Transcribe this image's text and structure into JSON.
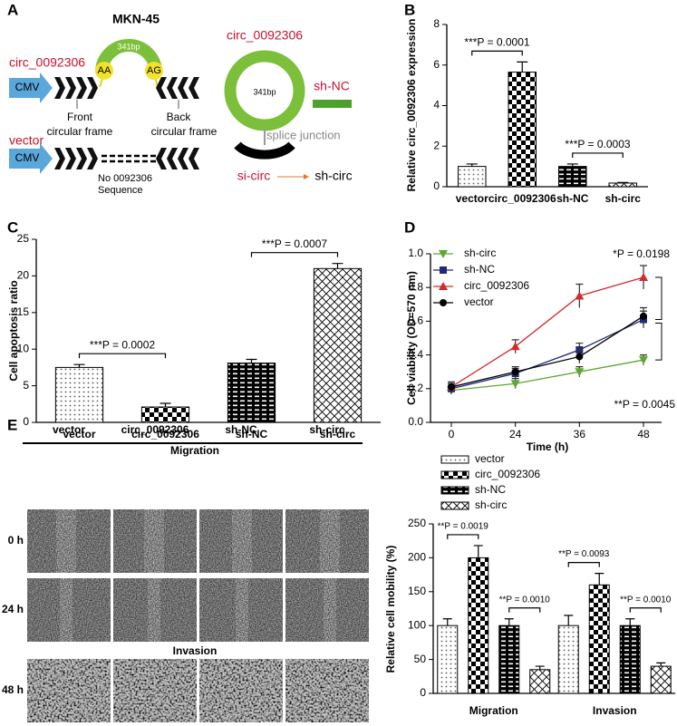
{
  "panel_labels": [
    "A",
    "B",
    "C",
    "D",
    "E"
  ],
  "diagram": {
    "title": "MKN-45",
    "insert_size": "341bp",
    "acceptor": "AA",
    "donor": "AG",
    "construct": "circ_0092306",
    "promoter": "CMV",
    "front_frame": [
      "Front",
      "circular frame"
    ],
    "back_frame": [
      "Back",
      "circular frame"
    ],
    "vector": "vector",
    "vector_promoter": "CMV",
    "vector_note": [
      "No 0092306",
      "Sequence"
    ],
    "circle_label": "circ_0092306",
    "circle_size": "341bp",
    "sh_nc": "sh-NC",
    "junction": "splice junction",
    "si_circ": "si-circ",
    "sh_circ": "sh-circ"
  },
  "images": {
    "columns": [
      "vector",
      "circ_0092306",
      "sh-NC",
      "sh-circ"
    ],
    "migration": "Migration",
    "invasion": "Invasion",
    "rows": [
      "0 h",
      "24 h",
      "48 h"
    ]
  },
  "chart_data": [
    {
      "type": "bar",
      "ylabel": "Relative circ_0092306 expression",
      "categories": [
        "vector",
        "circ_0092306",
        "sh-NC",
        "sh-circ"
      ],
      "values": [
        1.0,
        5.65,
        1.0,
        0.18
      ],
      "errors": [
        0.12,
        0.5,
        0.12,
        0.03
      ],
      "color": "#000000",
      "ylim": [
        0,
        8
      ],
      "yticks": [
        0,
        2,
        4,
        6,
        8
      ],
      "annotations": [
        "***P = 0.0001",
        "***P = 0.0003"
      ]
    },
    {
      "type": "bar",
      "ylabel": "Cell apoptosis ratio",
      "categories": [
        "vector",
        "circ_0092306",
        "sh-NC",
        "sh-circ"
      ],
      "values": [
        7.5,
        2.1,
        8.1,
        21.0
      ],
      "errors": [
        0.4,
        0.5,
        0.5,
        0.7
      ],
      "color": "#000000",
      "ylim": [
        0,
        25
      ],
      "yticks": [
        0,
        5,
        10,
        15,
        20,
        25
      ],
      "annotations": [
        "***P = 0.0002",
        "***P = 0.0007"
      ]
    },
    {
      "type": "line",
      "xlabel": "Time (h)",
      "ylabel": "Cell viability (OD=570 nm)",
      "categories": [
        "0",
        "24",
        "36",
        "48"
      ],
      "series": [
        {
          "name": "sh-circ",
          "color": "#5ca832",
          "marker": "triangle-down",
          "values": [
            0.19,
            0.23,
            0.3,
            0.37
          ],
          "errors": [
            0.02,
            0.03,
            0.03,
            0.03
          ]
        },
        {
          "name": "sh-NC",
          "color": "#1f2a7a",
          "marker": "square",
          "values": [
            0.2,
            0.29,
            0.43,
            0.61
          ],
          "errors": [
            0.03,
            0.03,
            0.04,
            0.05
          ]
        },
        {
          "name": "circ_0092306",
          "color": "#d42a2a",
          "marker": "triangle-up",
          "values": [
            0.21,
            0.45,
            0.75,
            0.86
          ],
          "errors": [
            0.02,
            0.04,
            0.07,
            0.07
          ]
        },
        {
          "name": "vector",
          "color": "#000000",
          "marker": "circle",
          "values": [
            0.21,
            0.3,
            0.39,
            0.63
          ],
          "errors": [
            0.03,
            0.03,
            0.04,
            0.05
          ]
        }
      ],
      "ylim": [
        0,
        1.0
      ],
      "yticks": [
        {
          "value": 0,
          "label": "0.0"
        },
        0.2,
        0.4,
        0.6,
        0.8,
        {
          "value": 1.0,
          "label": "1.0"
        }
      ],
      "legend": "upper-left",
      "annotations": [
        "*P = 0.0198",
        "**P = 0.0045"
      ]
    },
    {
      "type": "bar",
      "ylabel": "Relative cell mobility (%)",
      "categories": [
        "Migration",
        "Invasion"
      ],
      "series": [
        {
          "name": "vector",
          "color": "#000000",
          "values": [
            100,
            100
          ],
          "errors": [
            10,
            15
          ]
        },
        {
          "name": "circ_0092306",
          "color": "#000000",
          "values": [
            200,
            160
          ],
          "errors": [
            18,
            17
          ]
        },
        {
          "name": "sh-NC",
          "color": "#000000",
          "values": [
            100,
            100
          ],
          "errors": [
            10,
            10
          ]
        },
        {
          "name": "sh-circ",
          "color": "#000000",
          "values": [
            35,
            40
          ],
          "errors": [
            5,
            5
          ]
        }
      ],
      "ylim": [
        0,
        250
      ],
      "yticks": [
        0,
        50,
        100,
        150,
        200,
        250
      ],
      "legend": "top",
      "annotations": [
        "**P = 0.0019",
        "**P = 0.0010",
        "**P = 0.0093",
        "**P = 0.0010"
      ]
    }
  ]
}
